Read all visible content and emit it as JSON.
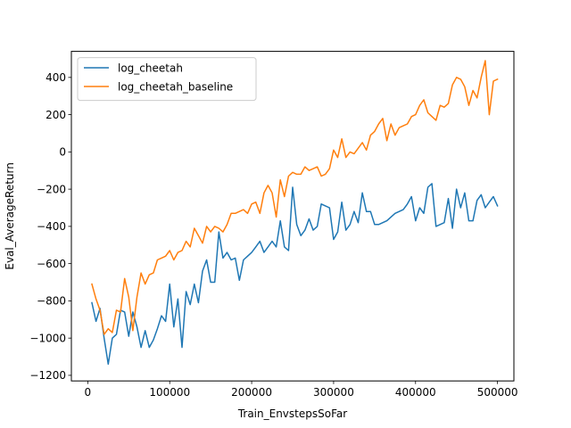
{
  "chart_data": {
    "type": "line",
    "title": "",
    "xlabel": "Train_EnvstepsSoFar",
    "ylabel": "Eval_AverageReturn",
    "xlim": [
      -20000,
      520000
    ],
    "ylim": [
      -1230,
      540
    ],
    "xticks": [
      0,
      100000,
      200000,
      300000,
      400000,
      500000
    ],
    "yticks": [
      -1200,
      -1000,
      -800,
      -600,
      -400,
      -200,
      0,
      200,
      400
    ],
    "grid": false,
    "legend_position": "upper-left",
    "x": [
      5000,
      10000,
      15000,
      20000,
      25000,
      30000,
      35000,
      40000,
      45000,
      50000,
      55000,
      60000,
      65000,
      70000,
      75000,
      80000,
      85000,
      90000,
      95000,
      100000,
      105000,
      110000,
      115000,
      120000,
      125000,
      130000,
      135000,
      140000,
      145000,
      150000,
      155000,
      160000,
      165000,
      170000,
      175000,
      180000,
      185000,
      190000,
      195000,
      200000,
      205000,
      210000,
      215000,
      220000,
      225000,
      230000,
      235000,
      240000,
      245000,
      250000,
      255000,
      260000,
      265000,
      270000,
      275000,
      280000,
      285000,
      290000,
      295000,
      300000,
      305000,
      310000,
      315000,
      320000,
      325000,
      330000,
      335000,
      340000,
      345000,
      350000,
      355000,
      360000,
      365000,
      370000,
      375000,
      380000,
      385000,
      390000,
      395000,
      400000,
      405000,
      410000,
      415000,
      420000,
      425000,
      430000,
      435000,
      440000,
      445000,
      450000,
      455000,
      460000,
      465000,
      470000,
      475000,
      480000,
      485000,
      490000,
      495000,
      500000
    ],
    "series": [
      {
        "name": "log_cheetah",
        "color": "#1f77b4",
        "values": [
          -810,
          -910,
          -840,
          -1000,
          -1140,
          -1000,
          -980,
          -850,
          -860,
          -990,
          -860,
          -940,
          -1050,
          -960,
          -1050,
          -1010,
          -950,
          -880,
          -910,
          -710,
          -940,
          -790,
          -1050,
          -750,
          -820,
          -710,
          -810,
          -640,
          -580,
          -700,
          -700,
          -430,
          -570,
          -540,
          -580,
          -570,
          -690,
          -580,
          -560,
          -540,
          -510,
          -480,
          -540,
          -510,
          -480,
          -510,
          -370,
          -510,
          -530,
          -190,
          -390,
          -450,
          -420,
          -360,
          -420,
          -400,
          -280,
          -290,
          -300,
          -470,
          -430,
          -270,
          -420,
          -390,
          -320,
          -380,
          -220,
          -320,
          -320,
          -390,
          -390,
          -380,
          -370,
          -350,
          -330,
          -320,
          -310,
          -280,
          -240,
          -370,
          -300,
          -330,
          -190,
          -170,
          -400,
          -390,
          -380,
          -250,
          -410,
          -200,
          -300,
          -220,
          -370,
          -370,
          -260,
          -230,
          -300,
          -270,
          -240,
          -290
        ]
      },
      {
        "name": "log_cheetah_baseline",
        "color": "#ff7f0e",
        "values": [
          -710,
          -790,
          -850,
          -980,
          -950,
          -970,
          -850,
          -860,
          -680,
          -780,
          -960,
          -780,
          -650,
          -710,
          -660,
          -650,
          -580,
          -570,
          -560,
          -530,
          -580,
          -540,
          -530,
          -480,
          -510,
          -410,
          -450,
          -490,
          -400,
          -430,
          -400,
          -410,
          -430,
          -390,
          -330,
          -330,
          -320,
          -310,
          -330,
          -280,
          -270,
          -330,
          -220,
          -180,
          -220,
          -350,
          -150,
          -240,
          -130,
          -110,
          -120,
          -120,
          -80,
          -100,
          -90,
          -80,
          -130,
          -120,
          -90,
          10,
          -30,
          70,
          -30,
          0,
          -10,
          20,
          50,
          10,
          90,
          110,
          150,
          180,
          60,
          150,
          90,
          130,
          140,
          150,
          190,
          200,
          250,
          280,
          210,
          190,
          170,
          250,
          240,
          260,
          360,
          400,
          390,
          350,
          250,
          330,
          290,
          400,
          490,
          200,
          380,
          390
        ]
      }
    ]
  }
}
